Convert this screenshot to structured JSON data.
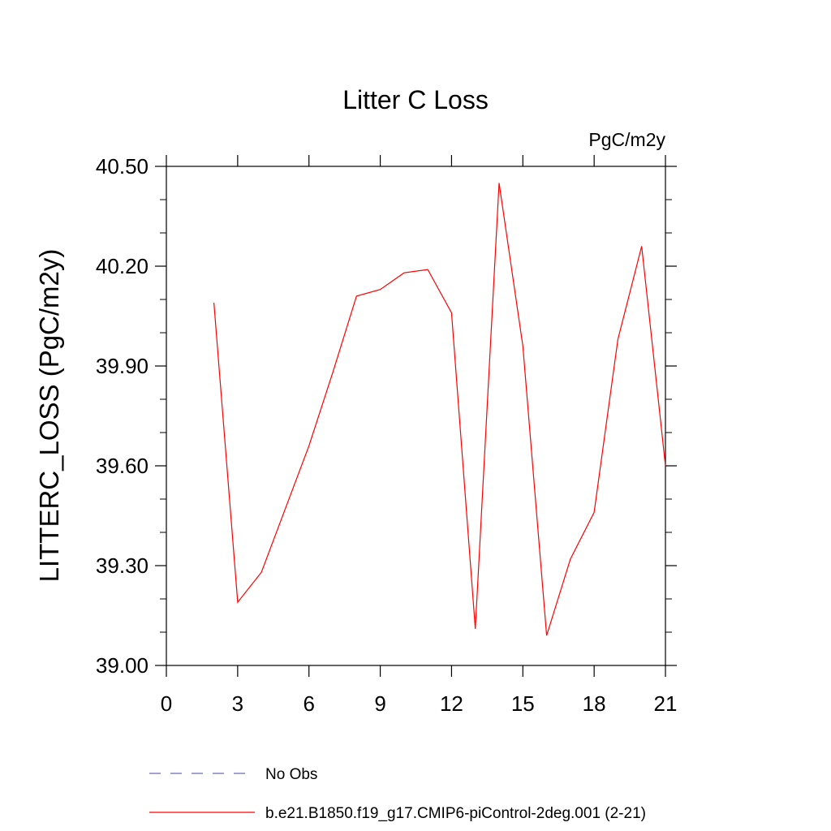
{
  "chart_data": {
    "type": "line",
    "title": "Litter C Loss",
    "units_label": "PgC/m2y",
    "xlabel": "",
    "ylabel": "LITTERC_LOSS  (PgC/m2y)",
    "xlim": [
      0,
      21
    ],
    "ylim": [
      39.0,
      40.5
    ],
    "x_ticks": [
      0,
      3,
      6,
      9,
      12,
      15,
      18,
      21
    ],
    "x_tick_labels": [
      "0",
      "3",
      "6",
      "9",
      "12",
      "15",
      "18",
      "21"
    ],
    "y_ticks": [
      39.0,
      39.3,
      39.6,
      39.9,
      40.2,
      40.5
    ],
    "y_tick_labels": [
      "39.00",
      "39.30",
      "39.60",
      "39.90",
      "40.20",
      "40.50"
    ],
    "grid": false,
    "legend_position": "bottom",
    "series": [
      {
        "name": "b.e21.B1850.f19_g17.CMIP6-piControl-2deg.001 (2-21)",
        "color": "#ff0000",
        "style": "solid",
        "x": [
          2,
          3,
          4,
          5,
          6,
          7,
          8,
          9,
          10,
          11,
          12,
          13,
          14,
          15,
          16,
          17,
          18,
          19,
          20,
          21
        ],
        "y": [
          40.09,
          39.19,
          39.28,
          39.47,
          39.66,
          39.88,
          40.11,
          40.13,
          40.18,
          40.19,
          40.06,
          39.11,
          40.45,
          39.96,
          39.09,
          39.32,
          39.46,
          39.98,
          40.26,
          39.6
        ]
      }
    ],
    "legend": [
      {
        "label": "No Obs",
        "color": "#6a6ab8",
        "style": "dashed"
      },
      {
        "label": "b.e21.B1850.f19_g17.CMIP6-piControl-2deg.001 (2-21)",
        "color": "#ff0000",
        "style": "solid"
      }
    ]
  }
}
